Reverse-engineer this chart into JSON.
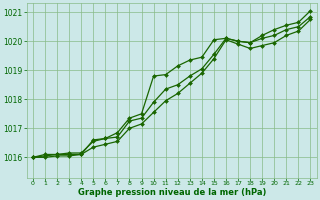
{
  "bg_color": "#cce8e8",
  "grid_color": "#88bb88",
  "line_color": "#1a6600",
  "marker_color": "#1a6600",
  "xlabel": "Graphe pression niveau de la mer (hPa)",
  "xlabel_color": "#006600",
  "tick_color": "#006600",
  "xlim": [
    -0.5,
    23.5
  ],
  "ylim": [
    1015.3,
    1021.3
  ],
  "yticks": [
    1016,
    1017,
    1018,
    1019,
    1020,
    1021
  ],
  "xticks": [
    0,
    1,
    2,
    3,
    4,
    5,
    6,
    7,
    8,
    9,
    10,
    11,
    12,
    13,
    14,
    15,
    16,
    17,
    18,
    19,
    20,
    21,
    22,
    23
  ],
  "line1_x": [
    0,
    1,
    2,
    3,
    4,
    5,
    6,
    7,
    8,
    9,
    10,
    11,
    12,
    13,
    14,
    15,
    16,
    17,
    18,
    19,
    20,
    21,
    22,
    23
  ],
  "line1_y": [
    1016.0,
    1016.1,
    1016.1,
    1016.1,
    1016.1,
    1016.6,
    1016.65,
    1016.85,
    1017.35,
    1017.5,
    1018.8,
    1018.85,
    1019.15,
    1019.35,
    1019.45,
    1020.05,
    1020.1,
    1020.0,
    1019.95,
    1020.2,
    1020.4,
    1020.55,
    1020.65,
    1021.05
  ],
  "line2_x": [
    0,
    1,
    2,
    3,
    4,
    5,
    6,
    7,
    8,
    9,
    10,
    11,
    12,
    13,
    14,
    15,
    16,
    17,
    18,
    19,
    20,
    21,
    22,
    23
  ],
  "line2_y": [
    1016.0,
    1016.05,
    1016.1,
    1016.15,
    1016.15,
    1016.55,
    1016.65,
    1016.7,
    1017.25,
    1017.35,
    1017.9,
    1018.35,
    1018.5,
    1018.8,
    1019.05,
    1019.55,
    1020.1,
    1020.0,
    1019.95,
    1020.1,
    1020.2,
    1020.4,
    1020.5,
    1020.85
  ],
  "line3_x": [
    0,
    1,
    2,
    3,
    4,
    5,
    6,
    7,
    8,
    9,
    10,
    11,
    12,
    13,
    14,
    15,
    16,
    17,
    18,
    19,
    20,
    21,
    22,
    23
  ],
  "line3_y": [
    1016.0,
    1016.0,
    1016.05,
    1016.05,
    1016.1,
    1016.35,
    1016.45,
    1016.55,
    1017.0,
    1017.15,
    1017.55,
    1017.95,
    1018.2,
    1018.55,
    1018.9,
    1019.4,
    1020.05,
    1019.9,
    1019.75,
    1019.85,
    1019.95,
    1020.2,
    1020.35,
    1020.75
  ]
}
